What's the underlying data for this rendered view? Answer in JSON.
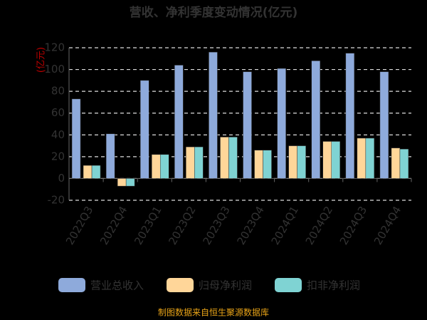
{
  "chart_data": {
    "type": "bar",
    "title": "营收、净利季度变动情况(亿元)",
    "y_label": "(亿元)",
    "categories": [
      "2022Q3",
      "2022Q4",
      "2023Q1",
      "2023Q2",
      "2023Q3",
      "2023Q4",
      "2024Q1",
      "2024Q2",
      "2024Q3",
      "2024Q4"
    ],
    "series": [
      {
        "name": "营业总收入",
        "color": "#8eaadb",
        "values": [
          73,
          41,
          90,
          104,
          116,
          98,
          101,
          108,
          115,
          98
        ]
      },
      {
        "name": "归母净利润",
        "color": "#ffd699",
        "values": [
          12,
          -7,
          22,
          29,
          38,
          26,
          30,
          34,
          37,
          28
        ]
      },
      {
        "name": "扣非净利润",
        "color": "#7fd3d3",
        "values": [
          12,
          -7,
          22,
          29,
          38,
          26,
          30,
          34,
          37,
          27
        ]
      }
    ],
    "ylim": [
      -20,
      120
    ],
    "yticks": [
      -20,
      0,
      20,
      40,
      60,
      80,
      100,
      120
    ],
    "grid": true,
    "footer": "制图数据来自恒生聚源数据库"
  }
}
